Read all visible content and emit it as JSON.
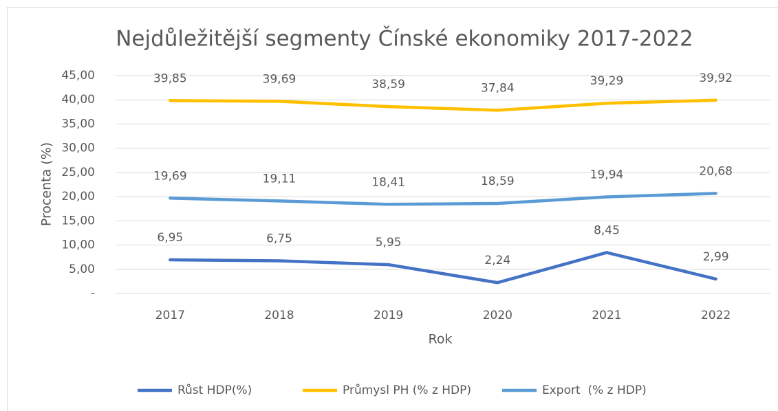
{
  "chart_data": {
    "type": "line",
    "title": "Nejdůležitější segmenty Čínské ekonomiky 2017-2022",
    "x_label": "Rok",
    "y_label": "Procenta (%)",
    "categories": [
      "2017",
      "2018",
      "2019",
      "2020",
      "2021",
      "2022"
    ],
    "series": [
      {
        "name": "Růst HDP(%)",
        "color": "#4472c4",
        "values": [
          6.95,
          6.75,
          5.95,
          2.24,
          8.45,
          2.99
        ],
        "value_labels": [
          "6,95",
          "6,75",
          "5,95",
          "2,24",
          "8,45",
          "2,99"
        ]
      },
      {
        "name": "Průmysl PH (% z HDP)",
        "color": "#ffc000",
        "values": [
          39.85,
          39.69,
          38.59,
          37.84,
          39.29,
          39.92
        ],
        "value_labels": [
          "39,85",
          "39,69",
          "38,59",
          "37,84",
          "39,29",
          "39,92"
        ]
      },
      {
        "name": "Export  (% z HDP)",
        "color": "#5b9bd5",
        "values": [
          19.69,
          19.11,
          18.41,
          18.59,
          19.94,
          20.68
        ],
        "value_labels": [
          "19,69",
          "19,11",
          "18,41",
          "18,59",
          "19,94",
          "20,68"
        ]
      }
    ],
    "ylim": [
      0,
      45
    ],
    "yticks": [
      {
        "value": 0,
        "label": "-"
      },
      {
        "value": 5,
        "label": "5,00"
      },
      {
        "value": 10,
        "label": "10,00"
      },
      {
        "value": 15,
        "label": "15,00"
      },
      {
        "value": 20,
        "label": "20,00"
      },
      {
        "value": 25,
        "label": "25,00"
      },
      {
        "value": 30,
        "label": "30,00"
      },
      {
        "value": 35,
        "label": "35,00"
      },
      {
        "value": 40,
        "label": "40,00"
      },
      {
        "value": 45,
        "label": "45,00"
      }
    ],
    "grid": true,
    "legend": "bottom"
  }
}
